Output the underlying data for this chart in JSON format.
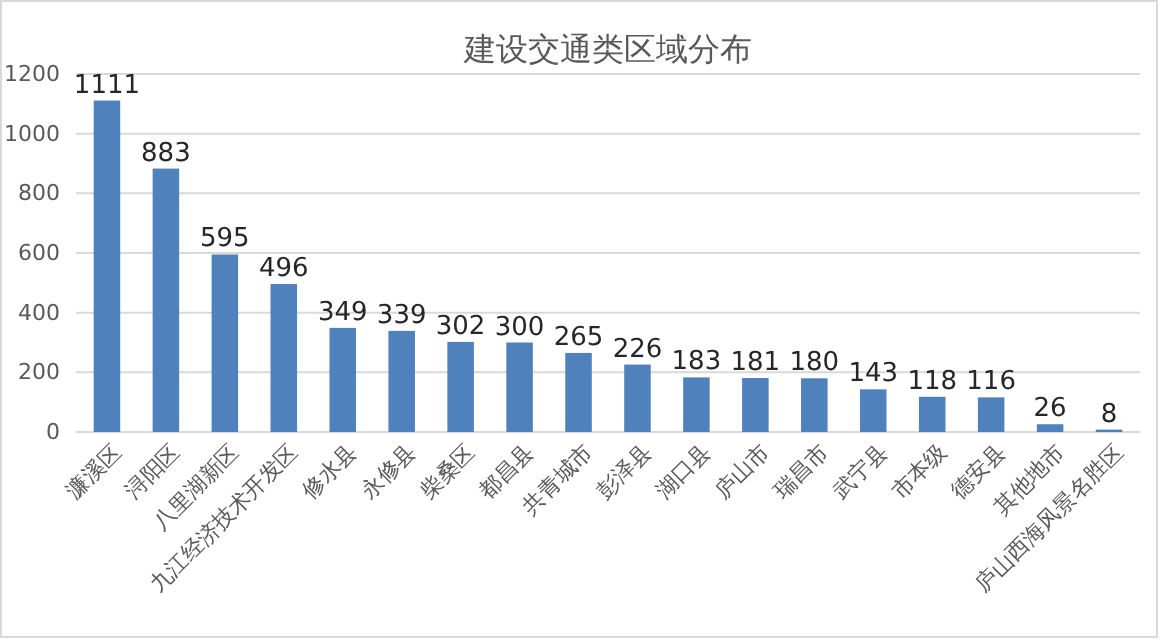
{
  "chart_data": {
    "type": "bar",
    "title": "建设交通类区域分布",
    "categories": [
      "濂溪区",
      "浔阳区",
      "八里湖新区",
      "九江经济技术开发区",
      "修水县",
      "永修县",
      "柴桑区",
      "都昌县",
      "共青城市",
      "彭泽县",
      "湖口县",
      "庐山市",
      "瑞昌市",
      "武宁县",
      "市本级",
      "德安县",
      "其他地市",
      "庐山西海风景名胜区"
    ],
    "values": [
      1111,
      883,
      595,
      496,
      349,
      339,
      302,
      300,
      265,
      226,
      183,
      181,
      180,
      143,
      118,
      116,
      26,
      8
    ],
    "color": "#4f81bd",
    "ylim": [
      0,
      1200
    ],
    "yticks": [
      0,
      200,
      400,
      600,
      800,
      1000,
      1200
    ],
    "grid": "y",
    "data_labels": true
  }
}
